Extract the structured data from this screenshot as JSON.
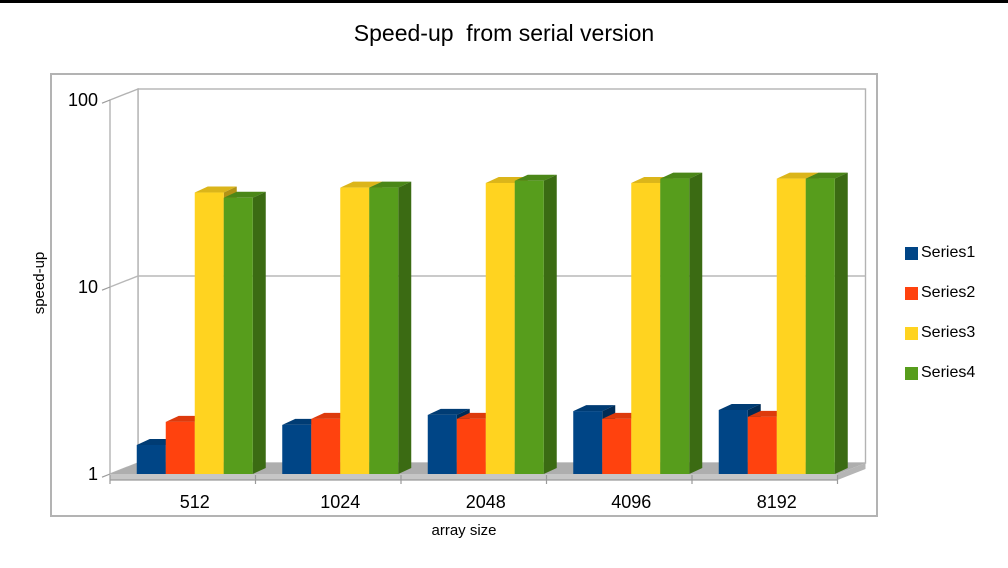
{
  "page": {
    "top_border_color": "#000000",
    "frame_border_color": "#b3b3b3"
  },
  "chart_data": {
    "type": "bar",
    "projection": "3d",
    "title": "Speed-up  from serial version",
    "xlabel": "array size",
    "ylabel": "speed-up",
    "y_scale": "log",
    "ylim": [
      1,
      100
    ],
    "y_ticks": [
      "1",
      "10",
      "100"
    ],
    "grid": "horizontal",
    "legend_position": "right",
    "categories": [
      "512",
      "1024",
      "2048",
      "4096",
      "8192"
    ],
    "series": [
      {
        "name": "Series1",
        "color": "#004586",
        "side_color": "#002c56",
        "top_color": "#003c74",
        "values": [
          1.43,
          1.83,
          2.07,
          2.17,
          2.2
        ]
      },
      {
        "name": "Series2",
        "color": "#ff420e",
        "side_color": "#b22d09",
        "top_color": "#dd3a0c",
        "values": [
          1.9,
          1.97,
          1.97,
          1.97,
          2.02
        ]
      },
      {
        "name": "Series3",
        "color": "#ffd320",
        "side_color": "#b29316",
        "top_color": "#dbb51a",
        "values": [
          32,
          34,
          36,
          36,
          38
        ]
      },
      {
        "name": "Series4",
        "color": "#579d1c",
        "side_color": "#3b6b13",
        "top_color": "#4b8718",
        "values": [
          30,
          34,
          37,
          38,
          38
        ]
      }
    ],
    "wall_line_color": "#b3b3b3",
    "gridline_color": "#b8b8b8",
    "floor_top_color": "#aeaeae",
    "floor_front_color": "#c6c6c6",
    "floor_side_color": "#b5b5b5",
    "axis_line_color": "#9a9a9a"
  }
}
